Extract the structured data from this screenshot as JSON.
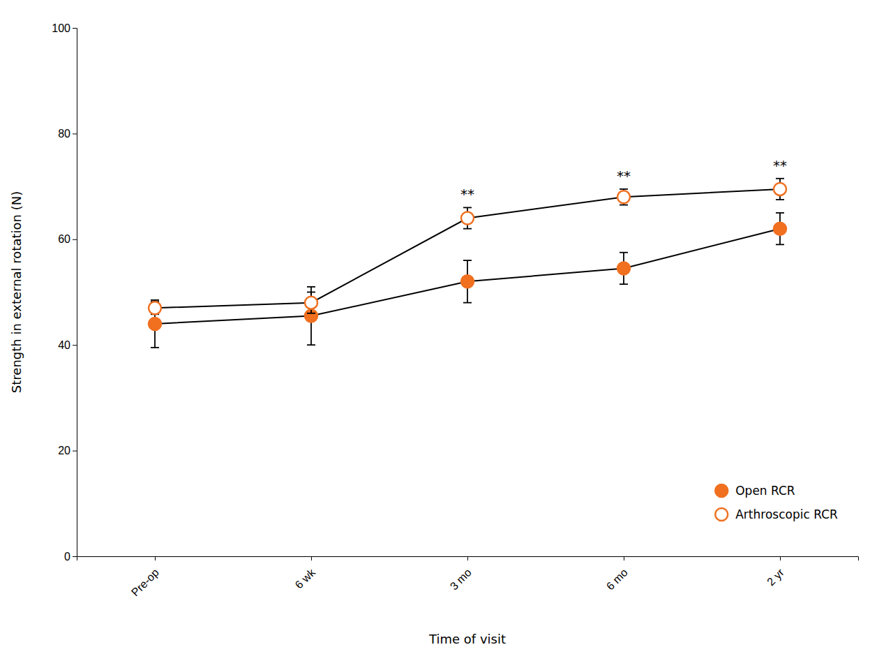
{
  "chart_data": {
    "type": "line",
    "xlabel": "Time of visit",
    "ylabel": "Strength in external rotation (N)",
    "categories": [
      "Pre-op",
      "6 wk",
      "3 mo",
      "6 mo",
      "2 yr"
    ],
    "series": [
      {
        "name": "Open RCR",
        "color": "#f07020",
        "marker": "circle",
        "values": [
          44,
          45.5,
          52,
          54.5,
          62
        ],
        "errors": [
          4.5,
          5.5,
          4.0,
          3.0,
          3.0
        ]
      },
      {
        "name": "Arthroscopic RCR",
        "color": "#f07020",
        "marker": "open-circle",
        "values": [
          47,
          48,
          64,
          68,
          69.5
        ],
        "errors": [
          1.2,
          2.0,
          2.0,
          1.5,
          2.0
        ]
      }
    ],
    "annotations": [
      {
        "text": "**",
        "x": "3 mo"
      },
      {
        "text": "**",
        "x": "6 mo"
      },
      {
        "text": "**",
        "x": "2 yr"
      }
    ],
    "ylim": [
      0,
      100
    ],
    "yticks": [
      0,
      20,
      40,
      60,
      80,
      100
    ],
    "grid": false,
    "legend": "lower right"
  }
}
